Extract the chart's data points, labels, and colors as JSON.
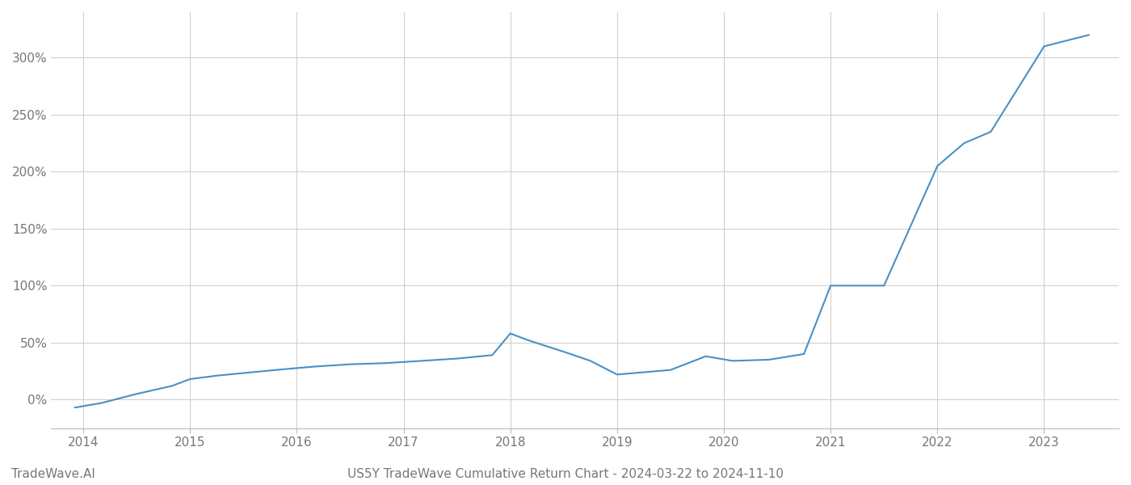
{
  "title": "US5Y TradeWave Cumulative Return Chart - 2024-03-22 to 2024-11-10",
  "watermark": "TradeWave.AI",
  "line_color": "#4a90c4",
  "background_color": "#ffffff",
  "grid_color": "#cccccc",
  "x_years": [
    2013.92,
    2014.17,
    2014.5,
    2014.83,
    2015.0,
    2015.25,
    2015.58,
    2015.92,
    2016.17,
    2016.5,
    2016.83,
    2017.17,
    2017.5,
    2017.83,
    2018.0,
    2018.17,
    2018.5,
    2018.75,
    2019.0,
    2019.25,
    2019.5,
    2019.83,
    2020.08,
    2020.42,
    2020.75,
    2021.0,
    2021.5,
    2022.0,
    2022.25,
    2022.5,
    2023.0,
    2023.42
  ],
  "y_values": [
    -7,
    -3,
    5,
    12,
    18,
    21,
    24,
    27,
    29,
    31,
    32,
    34,
    36,
    39,
    58,
    52,
    42,
    34,
    22,
    24,
    26,
    38,
    34,
    35,
    40,
    100,
    100,
    205,
    225,
    235,
    310,
    320
  ],
  "xlim": [
    2013.7,
    2023.7
  ],
  "ylim": [
    -25,
    340
  ],
  "yticks": [
    0,
    50,
    100,
    150,
    200,
    250,
    300
  ],
  "xticks": [
    2014,
    2015,
    2016,
    2017,
    2018,
    2019,
    2020,
    2021,
    2022,
    2023
  ],
  "line_width": 1.5,
  "figsize": [
    14.0,
    6.0
  ],
  "dpi": 100,
  "title_fontsize": 11,
  "tick_fontsize": 11,
  "footer_color": "#777777"
}
